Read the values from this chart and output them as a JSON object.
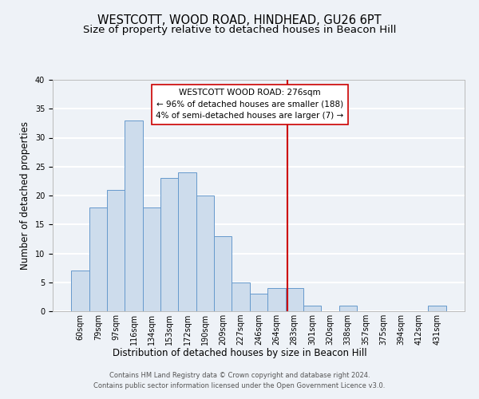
{
  "title": "WESTCOTT, WOOD ROAD, HINDHEAD, GU26 6PT",
  "subtitle": "Size of property relative to detached houses in Beacon Hill",
  "xlabel": "Distribution of detached houses by size in Beacon Hill",
  "ylabel": "Number of detached properties",
  "bar_labels": [
    "60sqm",
    "79sqm",
    "97sqm",
    "116sqm",
    "134sqm",
    "153sqm",
    "172sqm",
    "190sqm",
    "209sqm",
    "227sqm",
    "246sqm",
    "264sqm",
    "283sqm",
    "301sqm",
    "320sqm",
    "338sqm",
    "357sqm",
    "375sqm",
    "394sqm",
    "412sqm",
    "431sqm"
  ],
  "bar_heights": [
    7,
    18,
    21,
    33,
    18,
    23,
    24,
    20,
    13,
    5,
    3,
    4,
    4,
    1,
    0,
    1,
    0,
    0,
    0,
    0,
    1
  ],
  "bar_color": "#cddcec",
  "bar_edge_color": "#6699cc",
  "annotation_line_color": "#cc0000",
  "annotation_box_text": "WESTCOTT WOOD ROAD: 276sqm\n← 96% of detached houses are smaller (188)\n4% of semi-detached houses are larger (7) →",
  "ylim": [
    0,
    40
  ],
  "yticks": [
    0,
    5,
    10,
    15,
    20,
    25,
    30,
    35,
    40
  ],
  "footer_text": "Contains HM Land Registry data © Crown copyright and database right 2024.\nContains public sector information licensed under the Open Government Licence v3.0.",
  "bg_color": "#eef2f7",
  "grid_color": "#ffffff",
  "title_fontsize": 10.5,
  "subtitle_fontsize": 9.5,
  "axis_label_fontsize": 8.5,
  "tick_fontsize": 7,
  "footer_fontsize": 6,
  "annotation_fontsize": 7.5
}
